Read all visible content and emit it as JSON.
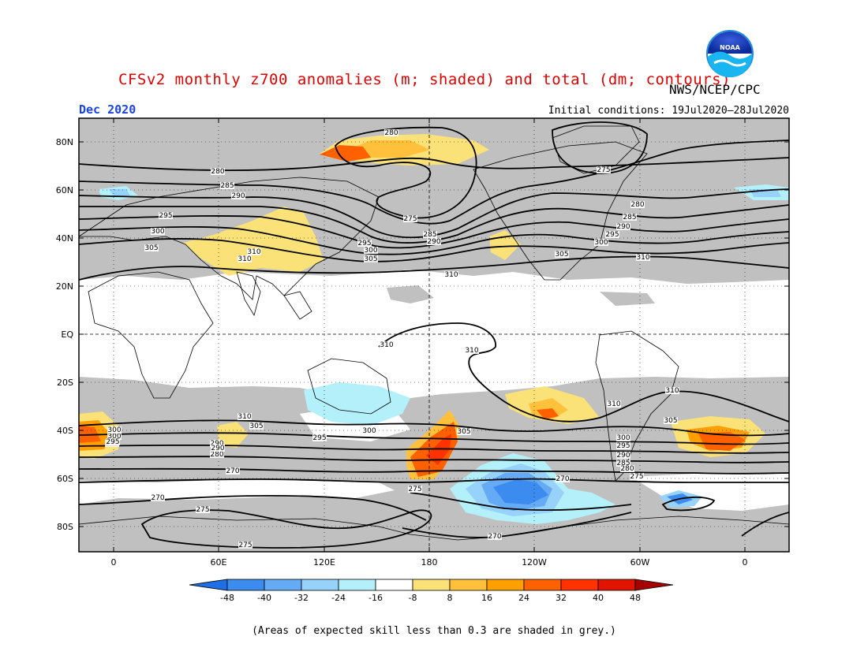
{
  "header": {
    "title": "CFSv2 monthly z700 anomalies (m; shaded) and total (dm; contours)",
    "agency": "NWS/NCEP/CPC",
    "month": "Dec 2020",
    "initial_conditions": "Initial conditions: 19Jul2020–28Jul2020",
    "logo_text": "NOAA"
  },
  "footnote": "(Areas of expected skill less than 0.3 are shaded in grey.)",
  "colors": {
    "skill_grey": "#c0c0c0",
    "neg": [
      "#1e6ee6",
      "#3c8cf0",
      "#64aaf5",
      "#96d2fa",
      "#b4f0fa"
    ],
    "zero": "#ffffff",
    "pos": [
      "#fae178",
      "#ffc03c",
      "#ffa000",
      "#ff6000",
      "#ff3200",
      "#e11400",
      "#a50000"
    ]
  },
  "axes": {
    "lat_labels": [
      "80N",
      "60N",
      "40N",
      "20N",
      "EQ",
      "20S",
      "40S",
      "60S",
      "80S"
    ],
    "lon_labels": [
      "0",
      "60E",
      "120E",
      "180",
      "120W",
      "60W",
      "0"
    ]
  },
  "colorbar": {
    "ticks": [
      "-48",
      "-40",
      "-32",
      "-24",
      "-16",
      "-8",
      "8",
      "16",
      "24",
      "32",
      "40",
      "48"
    ]
  },
  "contour_labels": [
    "280",
    "275",
    "280",
    "285",
    "290",
    "295",
    "300",
    "305",
    "310",
    "310",
    "275",
    "285",
    "290",
    "295",
    "300",
    "305",
    "310",
    "280",
    "285",
    "290",
    "295",
    "300",
    "305",
    "310",
    "310",
    "310",
    "310",
    "310",
    "310",
    "305",
    "300",
    "295",
    "290",
    "280",
    "300",
    "295",
    "305",
    "300",
    "295",
    "290",
    "285",
    "280",
    "275",
    "270",
    "275",
    "270",
    "270",
    "275",
    "275",
    "270",
    "305",
    "300",
    "295",
    "290"
  ]
}
